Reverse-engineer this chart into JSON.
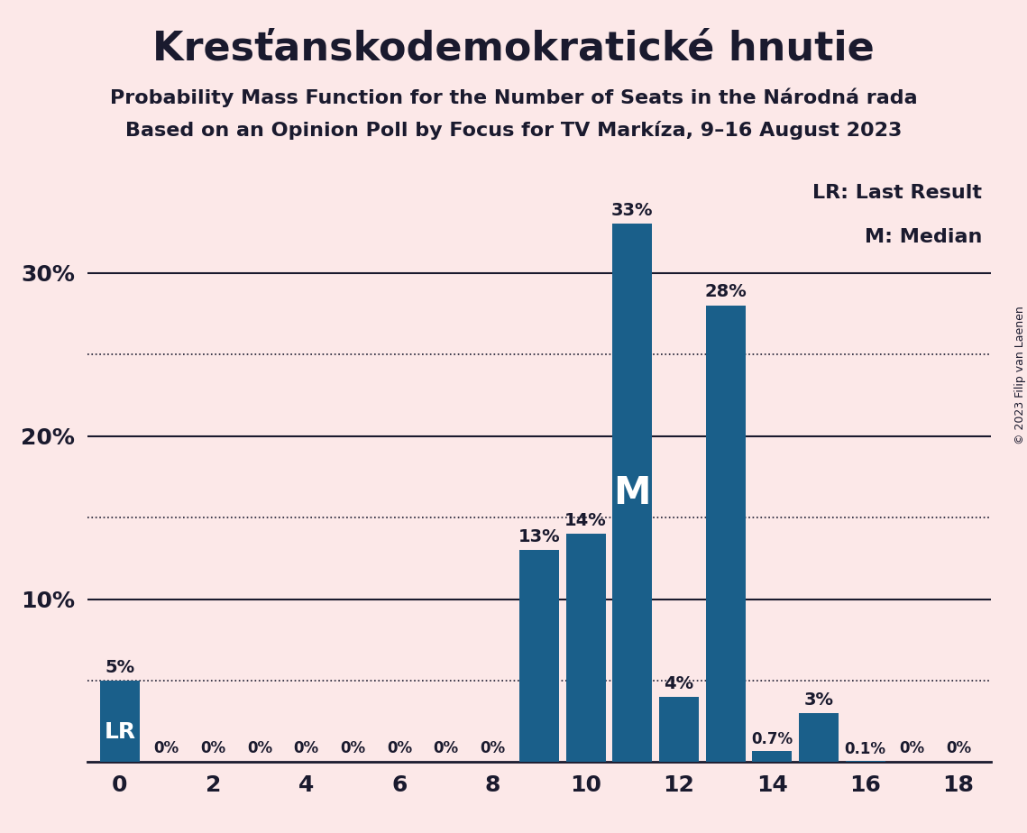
{
  "title": "Kresťanskodemokratické hnutie",
  "subtitle1": "Probability Mass Function for the Number of Seats in the Národná rada",
  "subtitle2": "Based on an Opinion Poll by Focus for TV Markíza, 9–16 August 2023",
  "copyright": "© 2023 Filip van Laenen",
  "seats": [
    0,
    1,
    2,
    3,
    4,
    5,
    6,
    7,
    8,
    9,
    10,
    11,
    12,
    13,
    14,
    15,
    16,
    17,
    18
  ],
  "probabilities": [
    5,
    0,
    0,
    0,
    0,
    0,
    0,
    0,
    0,
    13,
    14,
    33,
    4,
    28,
    0.7,
    3,
    0.1,
    0,
    0
  ],
  "bar_color": "#1a5f8a",
  "background_color": "#fce8e8",
  "text_color": "#1a1a2e",
  "lr_seat": 0,
  "median_seat": 11,
  "ytick_labeled": [
    10,
    20,
    30
  ],
  "ytick_labels": [
    "10%",
    "20%",
    "30%"
  ],
  "xticks": [
    0,
    2,
    4,
    6,
    8,
    10,
    12,
    14,
    16,
    18
  ],
  "ymax": 36,
  "dotted_lines": [
    5,
    15,
    25
  ],
  "solid_lines": [
    10,
    20,
    30
  ],
  "bar_labels": {
    "0": "5%",
    "1": "0%",
    "2": "0%",
    "3": "0%",
    "4": "0%",
    "5": "0%",
    "6": "0%",
    "7": "0%",
    "8": "0%",
    "9": "13%",
    "10": "14%",
    "11": "33%",
    "12": "4%",
    "13": "28%",
    "14": "0.7%",
    "15": "3%",
    "16": "0.1%",
    "17": "0%",
    "18": "0%"
  },
  "title_fontsize": 32,
  "subtitle_fontsize": 16,
  "tick_fontsize": 18,
  "label_fontsize_large": 14,
  "label_fontsize_small": 12,
  "legend_fontsize": 16,
  "lr_fontsize": 18,
  "m_fontsize": 30,
  "copyright_fontsize": 9
}
